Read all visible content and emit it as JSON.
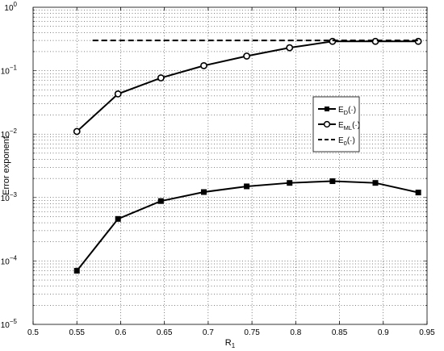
{
  "chart_data": {
    "type": "line",
    "xlabel": "R",
    "xlabel_sub": "1",
    "ylabel": "Error exponent",
    "xlim": [
      0.5,
      0.95
    ],
    "ylim": [
      1e-05,
      1
    ],
    "yscale": "log",
    "grid": true,
    "legend_position": "center-right",
    "x_ticks": [
      {
        "value": 0.5,
        "label": "0.5"
      },
      {
        "value": 0.55,
        "label": "0.55"
      },
      {
        "value": 0.6,
        "label": "0.6"
      },
      {
        "value": 0.65,
        "label": "0.65"
      },
      {
        "value": 0.7,
        "label": "0.7"
      },
      {
        "value": 0.75,
        "label": "0.75"
      },
      {
        "value": 0.8,
        "label": "0.8"
      },
      {
        "value": 0.85,
        "label": "0.85"
      },
      {
        "value": 0.9,
        "label": "0.9"
      },
      {
        "value": 0.95,
        "label": "0.95"
      }
    ],
    "y_ticks": [
      {
        "exp": 0,
        "base": "10",
        "sup": "0"
      },
      {
        "exp": -1,
        "base": "10",
        "sup": "−1"
      },
      {
        "exp": -2,
        "base": "10",
        "sup": "−2"
      },
      {
        "exp": -3,
        "base": "10",
        "sup": "−3"
      },
      {
        "exp": -4,
        "base": "10",
        "sup": "−4"
      },
      {
        "exp": -5,
        "base": "10",
        "sup": "−5"
      }
    ],
    "series": [
      {
        "name": "E",
        "name_sub": "D",
        "name_suffix": "(·)",
        "marker": "square",
        "dash": false,
        "color": "#000000",
        "x": [
          0.55,
          0.597,
          0.646,
          0.695,
          0.744,
          0.793,
          0.842,
          0.891,
          0.94
        ],
        "y": [
          7e-05,
          0.00046,
          0.00088,
          0.00122,
          0.0015,
          0.0017,
          0.00181,
          0.0017,
          0.0012
        ]
      },
      {
        "name": "E",
        "name_sub": "ML",
        "name_suffix": "(·)",
        "marker": "circle",
        "dash": false,
        "color": "#000000",
        "x": [
          0.55,
          0.597,
          0.646,
          0.695,
          0.744,
          0.793,
          0.842,
          0.891,
          0.94
        ],
        "y": [
          0.011,
          0.043,
          0.077,
          0.12,
          0.17,
          0.23,
          0.29,
          0.29,
          0.29
        ]
      },
      {
        "name": "E",
        "name_sub": "0",
        "name_suffix": "(·)",
        "marker": "none",
        "dash": true,
        "color": "#000000",
        "x": [
          0.568,
          0.94
        ],
        "y": [
          0.3,
          0.3
        ]
      }
    ]
  }
}
